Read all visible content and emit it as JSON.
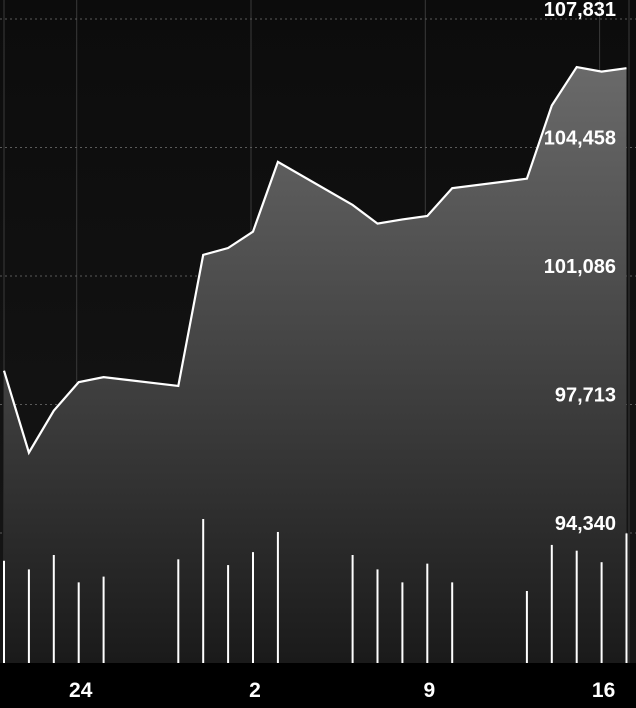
{
  "chart_data": {
    "type": "area",
    "y_tick_labels": [
      "107,831",
      "104,458",
      "101,086",
      "97,713",
      "94,340"
    ],
    "y_ticks": [
      107831,
      104458,
      101086,
      97713,
      94340
    ],
    "ylim": [
      94340,
      107831
    ],
    "x_tick_labels": [
      "24",
      "2",
      "9",
      "16"
    ],
    "x_tick_positions": [
      3,
      10,
      17,
      24
    ],
    "grid": true,
    "colors": {
      "background": "#000000",
      "line": "#ffffff",
      "grid": "#5a5a5a",
      "volume": "#ffffff"
    },
    "price_series": [
      {
        "x": 0,
        "y": 98600
      },
      {
        "x": 1,
        "y": 96450
      },
      {
        "x": 2,
        "y": 97550
      },
      {
        "x": 3,
        "y": 98300
      },
      {
        "x": 4,
        "y": 98430
      },
      {
        "x": 7,
        "y": 98200
      },
      {
        "x": 8,
        "y": 101640
      },
      {
        "x": 9,
        "y": 101820
      },
      {
        "x": 10,
        "y": 102250
      },
      {
        "x": 11,
        "y": 104080
      },
      {
        "x": 14,
        "y": 102950
      },
      {
        "x": 15,
        "y": 102460
      },
      {
        "x": 16,
        "y": 102570
      },
      {
        "x": 17,
        "y": 102660
      },
      {
        "x": 18,
        "y": 103390
      },
      {
        "x": 21,
        "y": 103640
      },
      {
        "x": 22,
        "y": 105560
      },
      {
        "x": 23,
        "y": 106570
      },
      {
        "x": 24,
        "y": 106450
      },
      {
        "x": 25,
        "y": 106540
      }
    ],
    "volume_series": [
      {
        "x": 0,
        "v": 0.71
      },
      {
        "x": 1,
        "v": 0.65
      },
      {
        "x": 2,
        "v": 0.75
      },
      {
        "x": 3,
        "v": 0.56
      },
      {
        "x": 4,
        "v": 0.6
      },
      {
        "x": 7,
        "v": 0.72
      },
      {
        "x": 8,
        "v": 1.0
      },
      {
        "x": 9,
        "v": 0.68
      },
      {
        "x": 10,
        "v": 0.77
      },
      {
        "x": 11,
        "v": 0.91
      },
      {
        "x": 14,
        "v": 0.75
      },
      {
        "x": 15,
        "v": 0.65
      },
      {
        "x": 16,
        "v": 0.56
      },
      {
        "x": 17,
        "v": 0.69
      },
      {
        "x": 18,
        "v": 0.56
      },
      {
        "x": 21,
        "v": 0.5
      },
      {
        "x": 22,
        "v": 0.82
      },
      {
        "x": 23,
        "v": 0.78
      },
      {
        "x": 24,
        "v": 0.7
      },
      {
        "x": 25,
        "v": 0.9
      }
    ]
  }
}
